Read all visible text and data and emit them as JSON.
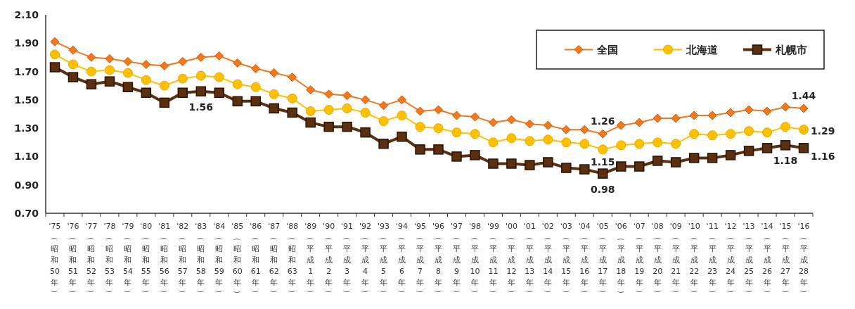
{
  "chart_data": {
    "type": "line",
    "categories": [
      "'75（昭和50年）",
      "'76（昭和51年）",
      "'77（昭和52年）",
      "'78（昭和53年）",
      "'79（昭和54年）",
      "'80（昭和55年）",
      "'81（昭和56年）",
      "'82（昭和57年）",
      "'83（昭和58年）",
      "'84（昭和59年）",
      "'85（昭和60年）",
      "'86（昭和61年）",
      "'87（昭和62年）",
      "'88（昭和63年）",
      "'89（平成1年）",
      "'90（平成2年）",
      "'91（平成3年）",
      "'92（平成4年）",
      "'93（平成5年）",
      "'94（平成6年）",
      "'95（平成7年）",
      "'96（平成8年）",
      "'97（平成9年）",
      "'98（平成10年）",
      "'99（平成11年）",
      "'00（平成12年）",
      "'01（平成13年）",
      "'02（平成14年）",
      "'03（平成15年）",
      "'04（平成16年）",
      "'05（平成17年）",
      "'06（平成18年）",
      "'07（平成19年）",
      "'08（平成20年）",
      "'09（平成21年）",
      "'10（平成22年）",
      "'11（平成23年）",
      "'12（平成24年）",
      "'13（平成25年）",
      "'14（平成26年）",
      "'15（平成27年）",
      "'16（平成28年）"
    ],
    "series": [
      {
        "name": "全国",
        "color": "#f07820",
        "marker": "diamond",
        "values": [
          1.91,
          1.85,
          1.8,
          1.79,
          1.77,
          1.75,
          1.74,
          1.77,
          1.8,
          1.81,
          1.76,
          1.72,
          1.69,
          1.66,
          1.57,
          1.54,
          1.53,
          1.5,
          1.46,
          1.5,
          1.42,
          1.43,
          1.39,
          1.38,
          1.34,
          1.36,
          1.33,
          1.32,
          1.29,
          1.29,
          1.26,
          1.32,
          1.34,
          1.37,
          1.37,
          1.39,
          1.39,
          1.41,
          1.43,
          1.42,
          1.45,
          1.44
        ],
        "value_labels": [
          null,
          null,
          null,
          null,
          null,
          null,
          null,
          null,
          null,
          null,
          null,
          null,
          null,
          null,
          null,
          null,
          null,
          null,
          null,
          null,
          null,
          null,
          null,
          null,
          null,
          null,
          null,
          null,
          null,
          null,
          "1.26",
          null,
          null,
          null,
          null,
          null,
          null,
          null,
          null,
          null,
          null,
          "1.44"
        ]
      },
      {
        "name": "北海道",
        "color": "#ffc000",
        "marker": "circle",
        "values": [
          1.82,
          1.75,
          1.7,
          1.71,
          1.69,
          1.64,
          1.6,
          1.65,
          1.67,
          1.66,
          1.61,
          1.59,
          1.54,
          1.51,
          1.42,
          1.43,
          1.44,
          1.41,
          1.35,
          1.39,
          1.31,
          1.3,
          1.27,
          1.26,
          1.2,
          1.23,
          1.21,
          1.22,
          1.2,
          1.19,
          1.15,
          1.18,
          1.19,
          1.2,
          1.19,
          1.26,
          1.25,
          1.26,
          1.28,
          1.27,
          1.31,
          1.29
        ],
        "value_labels": [
          null,
          null,
          null,
          null,
          null,
          null,
          null,
          null,
          null,
          null,
          null,
          null,
          null,
          null,
          null,
          null,
          null,
          null,
          null,
          null,
          null,
          null,
          null,
          null,
          null,
          null,
          null,
          null,
          null,
          null,
          "1.15",
          null,
          null,
          null,
          null,
          null,
          null,
          null,
          null,
          null,
          null,
          "1.29"
        ]
      },
      {
        "name": "札幌市",
        "color": "#5a3010",
        "marker": "square",
        "values": [
          1.73,
          1.66,
          1.61,
          1.63,
          1.59,
          1.55,
          1.48,
          1.55,
          1.56,
          1.55,
          1.49,
          1.49,
          1.44,
          1.41,
          1.34,
          1.31,
          1.31,
          1.27,
          1.19,
          1.24,
          1.15,
          1.15,
          1.1,
          1.11,
          1.05,
          1.05,
          1.04,
          1.06,
          1.02,
          1.01,
          0.98,
          1.03,
          1.03,
          1.07,
          1.06,
          1.09,
          1.09,
          1.11,
          1.14,
          1.16,
          1.18,
          1.16
        ],
        "value_labels": [
          null,
          null,
          null,
          null,
          null,
          null,
          null,
          null,
          "1.56",
          null,
          null,
          null,
          null,
          null,
          null,
          null,
          null,
          null,
          null,
          null,
          null,
          null,
          null,
          null,
          null,
          null,
          null,
          null,
          null,
          null,
          "0.98",
          null,
          null,
          null,
          null,
          null,
          null,
          null,
          null,
          null,
          "1.18",
          "1.16"
        ]
      }
    ],
    "ylim": [
      0.7,
      2.1
    ],
    "yticks": [
      {
        "value": 0.7,
        "label": "0.70"
      },
      {
        "value": 0.9,
        "label": "0.90"
      },
      {
        "value": 1.1,
        "label": "1.10"
      },
      {
        "value": 1.3,
        "label": "1.30"
      },
      {
        "value": 1.5,
        "label": "1.50"
      },
      {
        "value": 1.7,
        "label": "1.70"
      },
      {
        "value": 1.9,
        "label": "1.90"
      },
      {
        "value": 2.1,
        "label": "2.10"
      }
    ],
    "grid": false,
    "legend": "top right"
  }
}
